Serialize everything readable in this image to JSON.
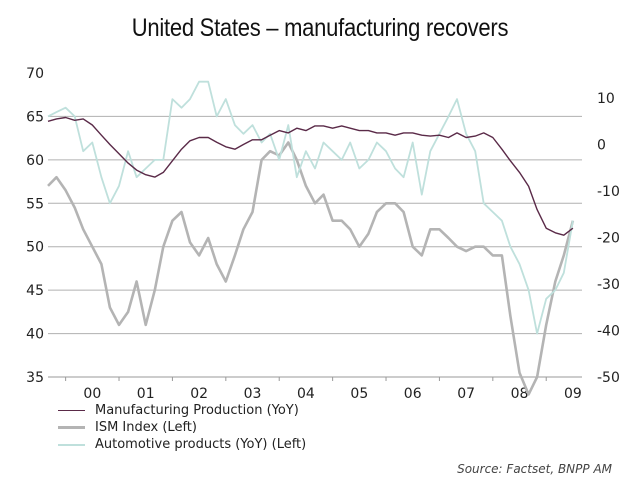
{
  "title": "United States – manufacturing recovers",
  "source": "Source: Factset, BNPP AM",
  "colors": {
    "manufacturing": "#5a2a48",
    "ism": "#b4b4b4",
    "automotive": "#bfe0dc",
    "grid": "#b0b0b0"
  },
  "chart_data": {
    "type": "line",
    "title": "United States – manufacturing recovers",
    "xlabel": "",
    "ylabel_left": "",
    "ylabel_right": "",
    "x_tick_labels": [
      "00",
      "01",
      "02",
      "03",
      "04",
      "05",
      "06",
      "07",
      "08",
      "09"
    ],
    "x_range": [
      1999.67,
      2009.67
    ],
    "y_left": {
      "range": [
        35,
        70
      ],
      "ticks": [
        35,
        40,
        45,
        50,
        55,
        60,
        65,
        70
      ]
    },
    "y_right": {
      "range": [
        -50,
        10
      ],
      "ticks": [
        -50,
        -40,
        -30,
        -20,
        -10,
        0,
        10
      ]
    },
    "grid": true,
    "legend_position": "bottom-left",
    "series": [
      {
        "name": "Manufacturing Production (YoY)",
        "axis": "right",
        "color_key": "manufacturing",
        "x": [
          1999.67,
          1999.83,
          2000.0,
          2000.17,
          2000.33,
          2000.5,
          2000.67,
          2000.83,
          2001.0,
          2001.17,
          2001.33,
          2001.5,
          2001.67,
          2001.83,
          2002.0,
          2002.17,
          2002.33,
          2002.5,
          2002.67,
          2002.83,
          2003.0,
          2003.17,
          2003.33,
          2003.5,
          2003.67,
          2003.83,
          2004.0,
          2004.17,
          2004.33,
          2004.5,
          2004.67,
          2004.83,
          2005.0,
          2005.17,
          2005.33,
          2005.5,
          2005.67,
          2005.83,
          2006.0,
          2006.17,
          2006.33,
          2006.5,
          2006.67,
          2006.83,
          2007.0,
          2007.17,
          2007.33,
          2007.5,
          2007.67,
          2007.83,
          2008.0,
          2008.17,
          2008.33,
          2008.5,
          2008.67,
          2008.83,
          2009.0,
          2009.17,
          2009.33,
          2009.5
        ],
        "values": [
          5,
          5.5,
          5.8,
          5.2,
          5.5,
          4.2,
          2,
          0,
          -2,
          -4,
          -5.5,
          -6.5,
          -7,
          -6,
          -3.5,
          -1,
          0.8,
          1.5,
          1.5,
          0.5,
          -0.5,
          -1,
          0,
          1,
          1,
          2,
          3,
          2.5,
          3.5,
          3,
          4,
          4,
          3.5,
          4,
          3.5,
          3,
          3,
          2.5,
          2.5,
          2,
          2.5,
          2.5,
          2,
          1.8,
          2,
          1.5,
          2.5,
          1.5,
          1.8,
          2.5,
          1.5,
          -1,
          -3.5,
          -6,
          -9,
          -14,
          -18,
          -19,
          -19.5,
          -18
        ]
      },
      {
        "name": "ISM Index (Left)",
        "axis": "left",
        "color_key": "ism",
        "x": [
          1999.67,
          1999.83,
          2000.0,
          2000.17,
          2000.33,
          2000.5,
          2000.67,
          2000.83,
          2001.0,
          2001.17,
          2001.33,
          2001.5,
          2001.67,
          2001.83,
          2002.0,
          2002.17,
          2002.33,
          2002.5,
          2002.67,
          2002.83,
          2003.0,
          2003.17,
          2003.33,
          2003.5,
          2003.67,
          2003.83,
          2004.0,
          2004.17,
          2004.33,
          2004.5,
          2004.67,
          2004.83,
          2005.0,
          2005.17,
          2005.33,
          2005.5,
          2005.67,
          2005.83,
          2006.0,
          2006.17,
          2006.33,
          2006.5,
          2006.67,
          2006.83,
          2007.0,
          2007.17,
          2007.33,
          2007.5,
          2007.67,
          2007.83,
          2008.0,
          2008.17,
          2008.33,
          2008.5,
          2008.67,
          2008.83,
          2009.0,
          2009.17,
          2009.33,
          2009.5
        ],
        "values": [
          57,
          58,
          56.5,
          54.5,
          52,
          50,
          48,
          43,
          41,
          42.5,
          46,
          41,
          45,
          50,
          53,
          54,
          50.5,
          49,
          51,
          48,
          46,
          49,
          52,
          54,
          60,
          61,
          60.5,
          62,
          60,
          57,
          55,
          56,
          53,
          53,
          52,
          50,
          51.5,
          54,
          55,
          55,
          54,
          50,
          49,
          52,
          52,
          51,
          50,
          49.5,
          50,
          50,
          49,
          49,
          42,
          35.5,
          33,
          35,
          41,
          46,
          49,
          53
        ]
      },
      {
        "name": "Automotive products (YoY) (Left)",
        "axis": "left",
        "color_key": "automotive",
        "x": [
          1999.67,
          1999.83,
          2000.0,
          2000.17,
          2000.33,
          2000.5,
          2000.67,
          2000.83,
          2001.0,
          2001.17,
          2001.33,
          2001.5,
          2001.67,
          2001.83,
          2002.0,
          2002.17,
          2002.33,
          2002.5,
          2002.67,
          2002.83,
          2003.0,
          2003.17,
          2003.33,
          2003.5,
          2003.67,
          2003.83,
          2004.0,
          2004.17,
          2004.33,
          2004.5,
          2004.67,
          2004.83,
          2005.0,
          2005.17,
          2005.33,
          2005.5,
          2005.67,
          2005.83,
          2006.0,
          2006.17,
          2006.33,
          2006.5,
          2006.67,
          2006.83,
          2007.0,
          2007.17,
          2007.33,
          2007.5,
          2007.67,
          2007.83,
          2008.0,
          2008.17,
          2008.33,
          2008.5,
          2008.67,
          2008.83,
          2009.0,
          2009.17,
          2009.33,
          2009.5
        ],
        "values": [
          65,
          65.5,
          66,
          65,
          61,
          62,
          58,
          55,
          57,
          61,
          58,
          59,
          60,
          60,
          67,
          66,
          67,
          69,
          69,
          65,
          67,
          64,
          63,
          64,
          62,
          63,
          60,
          64,
          58,
          61,
          59,
          62,
          61,
          60,
          62,
          59,
          60,
          62,
          61,
          59,
          58,
          62,
          56,
          61,
          63,
          65,
          67,
          63,
          61,
          55,
          54,
          53,
          50,
          48,
          45,
          40,
          44,
          45,
          47,
          53
        ]
      }
    ]
  },
  "legend": [
    {
      "label": "Manufacturing Production (YoY)",
      "color_key": "manufacturing"
    },
    {
      "label": "ISM Index  (Left)",
      "color_key": "ism"
    },
    {
      "label": "Automotive products (YoY)  (Left)",
      "color_key": "automotive"
    }
  ]
}
